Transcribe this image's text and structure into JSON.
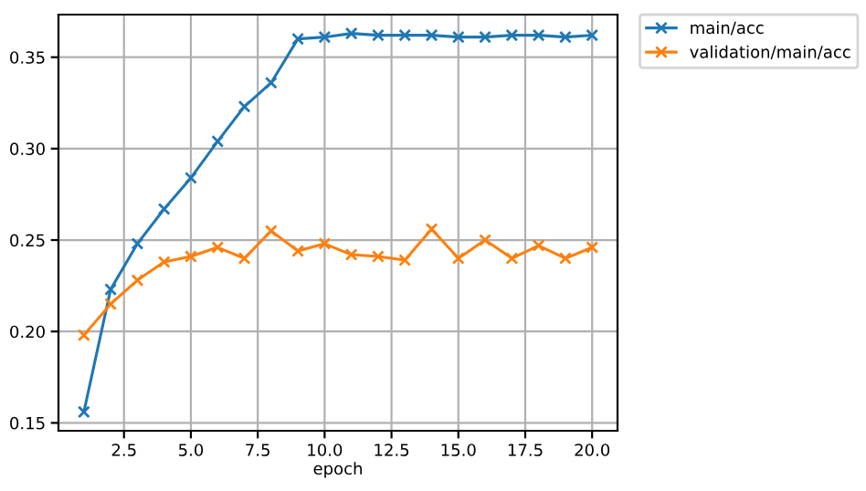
{
  "chart_data": {
    "type": "line",
    "xlabel": "epoch",
    "x": [
      1,
      2,
      3,
      4,
      5,
      6,
      7,
      8,
      9,
      10,
      11,
      12,
      13,
      14,
      15,
      16,
      17,
      18,
      19,
      20
    ],
    "series": [
      {
        "name": "main/acc",
        "color": "#1f77b4",
        "values": [
          0.156,
          0.223,
          0.248,
          0.267,
          0.284,
          0.304,
          0.323,
          0.336,
          0.36,
          0.361,
          0.363,
          0.362,
          0.362,
          0.362,
          0.361,
          0.361,
          0.362,
          0.362,
          0.361,
          0.362
        ]
      },
      {
        "name": "validation/main/acc",
        "color": "#ff7f0e",
        "values": [
          0.198,
          0.215,
          0.228,
          0.238,
          0.241,
          0.246,
          0.24,
          0.255,
          0.244,
          0.248,
          0.242,
          0.241,
          0.239,
          0.256,
          0.24,
          0.25,
          0.24,
          0.247,
          0.24,
          0.246
        ]
      }
    ],
    "xlim": [
      0.05,
      20.95
    ],
    "ylim": [
      0.1457,
      0.3733
    ],
    "xticks": [
      {
        "value": 2.5,
        "label": "2.5"
      },
      {
        "value": 5,
        "label": "5.0"
      },
      {
        "value": 7.5,
        "label": "7.5"
      },
      {
        "value": 10,
        "label": "10.0"
      },
      {
        "value": 12.5,
        "label": "12.5"
      },
      {
        "value": 15,
        "label": "15.0"
      },
      {
        "value": 17.5,
        "label": "17.5"
      },
      {
        "value": 20,
        "label": "20.0"
      }
    ],
    "yticks": [
      {
        "value": 0.15,
        "label": "0.15"
      },
      {
        "value": 0.2,
        "label": "0.20"
      },
      {
        "value": 0.25,
        "label": "0.25"
      },
      {
        "value": 0.3,
        "label": "0.30"
      },
      {
        "value": 0.35,
        "label": "0.35"
      }
    ],
    "grid": true,
    "legend": "top right",
    "marker": "cross",
    "line_style": "solid"
  }
}
